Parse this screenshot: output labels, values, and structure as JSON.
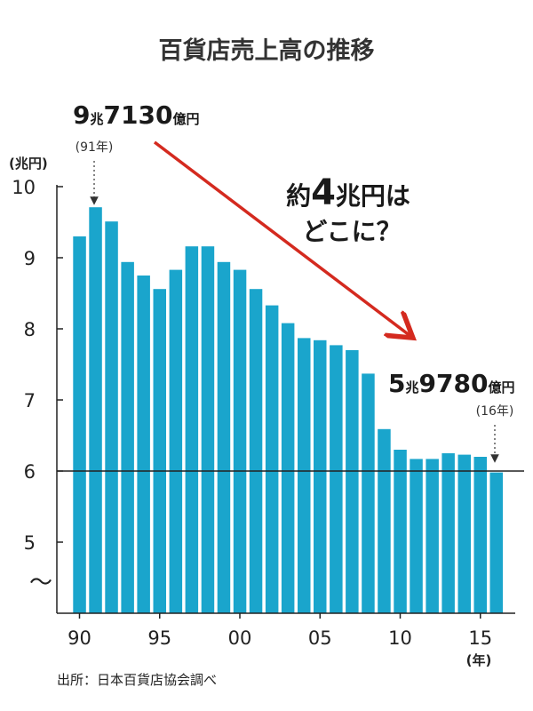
{
  "title": "百貨店売上高の推移",
  "source": "出所：日本百貨店協会調べ",
  "callout": {
    "prefix": "約",
    "number": "4",
    "suffix": "兆円は",
    "line2": "どこに？"
  },
  "annotations": {
    "peak": {
      "n1": "9",
      "u1": "兆",
      "n2": "7130",
      "u2": "億円",
      "year": "(91年)"
    },
    "latest": {
      "n1": "5",
      "u1": "兆",
      "n2": "9780",
      "u2": "億円",
      "year": "(16年)"
    }
  },
  "colors": {
    "bar": "#1aa5cc",
    "arrow": "#d42a1f",
    "axis": "#222222"
  },
  "chart_data": {
    "type": "bar",
    "ylabel": "(兆円)",
    "xlabel": "(年)",
    "ylim": [
      4,
      10
    ],
    "yticks": [
      "5",
      "6",
      "7",
      "8",
      "9",
      "10"
    ],
    "axis_break": "〜",
    "reference_line": 6,
    "xticks": [
      {
        "label": "90",
        "year": 1990
      },
      {
        "label": "95",
        "year": 1995
      },
      {
        "label": "00",
        "year": 2000
      },
      {
        "label": "05",
        "year": 2005
      },
      {
        "label": "10",
        "year": 2010
      },
      {
        "label": "15",
        "year": 2015
      }
    ],
    "years": [
      1990,
      1991,
      1992,
      1993,
      1994,
      1995,
      1996,
      1997,
      1998,
      1999,
      2000,
      2001,
      2002,
      2003,
      2004,
      2005,
      2006,
      2007,
      2008,
      2009,
      2010,
      2011,
      2012,
      2013,
      2014,
      2015,
      2016
    ],
    "values": [
      9.3,
      9.71,
      9.51,
      8.94,
      8.75,
      8.56,
      8.83,
      9.16,
      9.16,
      8.94,
      8.83,
      8.56,
      8.33,
      8.08,
      7.87,
      7.84,
      7.77,
      7.7,
      7.37,
      6.59,
      6.3,
      6.17,
      6.17,
      6.25,
      6.23,
      6.2,
      5.98
    ]
  }
}
